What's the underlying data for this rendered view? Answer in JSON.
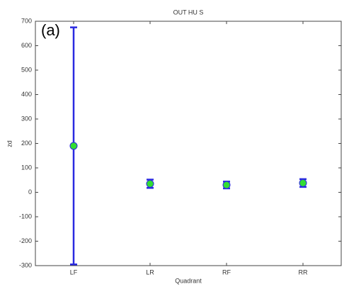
{
  "chart_data": {
    "type": "errorbar",
    "title": "OUT  HU S",
    "x_label": "Quadrant",
    "y_label": "zd",
    "annotation": "(a)",
    "categories": [
      "LF",
      "LR",
      "RF",
      "RR"
    ],
    "series": [
      {
        "color": "#33dd33",
        "edge_color": "#2a2ae0",
        "values": [
          190,
          35,
          30,
          38
        ],
        "errors": [
          485,
          17,
          14,
          16
        ]
      }
    ],
    "ylim": [
      -300,
      700
    ],
    "yticks": [
      -300,
      -200,
      -100,
      0,
      100,
      200,
      300,
      400,
      500,
      600,
      700
    ]
  }
}
